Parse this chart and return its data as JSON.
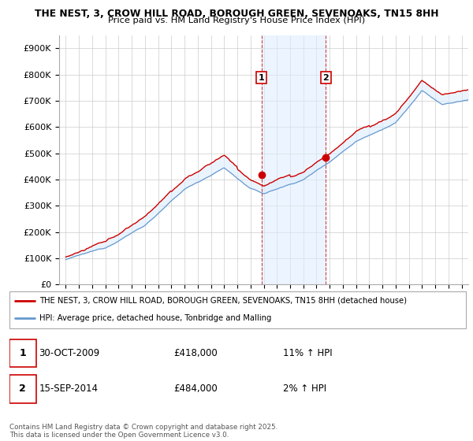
{
  "title1": "THE NEST, 3, CROW HILL ROAD, BOROUGH GREEN, SEVENOAKS, TN15 8HH",
  "title2": "Price paid vs. HM Land Registry's House Price Index (HPI)",
  "legend_label1": "THE NEST, 3, CROW HILL ROAD, BOROUGH GREEN, SEVENOAKS, TN15 8HH (detached house)",
  "legend_label2": "HPI: Average price, detached house, Tonbridge and Malling",
  "sale1_date": "30-OCT-2009",
  "sale1_price": "£418,000",
  "sale1_hpi": "11% ↑ HPI",
  "sale2_date": "15-SEP-2014",
  "sale2_price": "£484,000",
  "sale2_hpi": "2% ↑ HPI",
  "copyright": "Contains HM Land Registry data © Crown copyright and database right 2025.\nThis data is licensed under the Open Government Licence v3.0.",
  "line_color_house": "#cc0000",
  "line_color_hpi": "#6699cc",
  "fill_color_hpi": "#ddeeff",
  "shade_color": "#ddeeff",
  "grid_color": "#cccccc",
  "sale1_x": 2009.83,
  "sale2_x": 2014.71,
  "sale1_price_val": 418000,
  "sale2_price_val": 484000,
  "ylim_min": 0,
  "ylim_max": 950000,
  "xlim_min": 1994.5,
  "xlim_max": 2025.5,
  "bg_color": "#ffffff"
}
